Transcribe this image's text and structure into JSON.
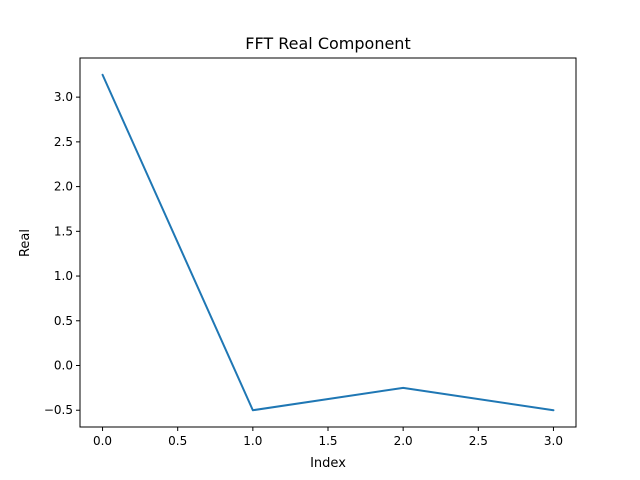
{
  "chart_data": {
    "type": "line",
    "title": "FFT Real Component",
    "xlabel": "Index",
    "ylabel": "Real",
    "x": [
      0,
      1,
      2,
      3
    ],
    "series": [
      {
        "values": [
          3.25,
          -0.5,
          -0.25,
          -0.5
        ],
        "color": "#1f77b4"
      }
    ],
    "xlim": [
      -0.15,
      3.15
    ],
    "ylim": [
      -0.6875,
      3.4375
    ],
    "xticks": [
      0.0,
      0.5,
      1.0,
      1.5,
      2.0,
      2.5,
      3.0
    ],
    "xtick_labels": [
      "0.0",
      "0.5",
      "1.0",
      "1.5",
      "2.0",
      "2.5",
      "3.0"
    ],
    "yticks": [
      -0.5,
      0.0,
      0.5,
      1.0,
      1.5,
      2.0,
      2.5,
      3.0
    ],
    "ytick_labels": [
      "−0.5",
      "0.0",
      "0.5",
      "1.0",
      "1.5",
      "2.0",
      "2.5",
      "3.0"
    ],
    "grid": false,
    "legend": "none"
  }
}
